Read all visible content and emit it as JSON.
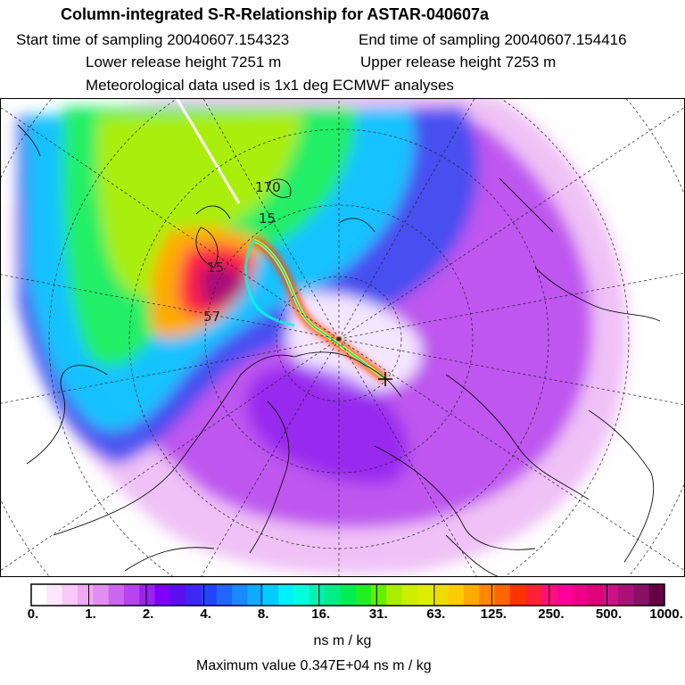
{
  "header": {
    "title": "Column-integrated S-R-Relationship for ASTAR-040607a",
    "start_time": "Start time of sampling 20040607.154323",
    "end_time": "End time of sampling 20040607.154416",
    "lower_height": "Lower release height 7251 m",
    "upper_height": "Upper release height 7253 m",
    "met_data": "Meteorological data used is 1x1 deg ECMWF analyses"
  },
  "map": {
    "labels": {
      "l1": "170",
      "l2": "15",
      "l3": "15",
      "l4": "57"
    }
  },
  "colorbar": {
    "colors": [
      "#ffffff",
      "#ffe6ff",
      "#f8c8f8",
      "#eeaaf2",
      "#e08ef0",
      "#cc66ee",
      "#b844f0",
      "#9a22ee",
      "#7f00ff",
      "#5a10ee",
      "#3c28f0",
      "#2244ff",
      "#2266ff",
      "#1a88ff",
      "#10aaff",
      "#00ccff",
      "#00f0ff",
      "#00ffdd",
      "#00f0b0",
      "#00ee88",
      "#00ee55",
      "#22ee22",
      "#66ee00",
      "#aaee00",
      "#ccee00",
      "#ddee00",
      "#eedd00",
      "#ffcc00",
      "#ffaa00",
      "#ff8800",
      "#ff6600",
      "#ff3300",
      "#ff2233",
      "#ff1177",
      "#ff0099",
      "#ee0088",
      "#dd0077",
      "#cc1188",
      "#aa1177",
      "#881166",
      "#660044"
    ],
    "ticks": [
      "0.",
      "1.",
      "2.",
      "4.",
      "8.",
      "16.",
      "31.",
      "63.",
      "125.",
      "250.",
      "500.",
      "1000."
    ],
    "units": "ns m / kg",
    "max_value": "Maximum value  0.347E+04 ns m / kg"
  }
}
